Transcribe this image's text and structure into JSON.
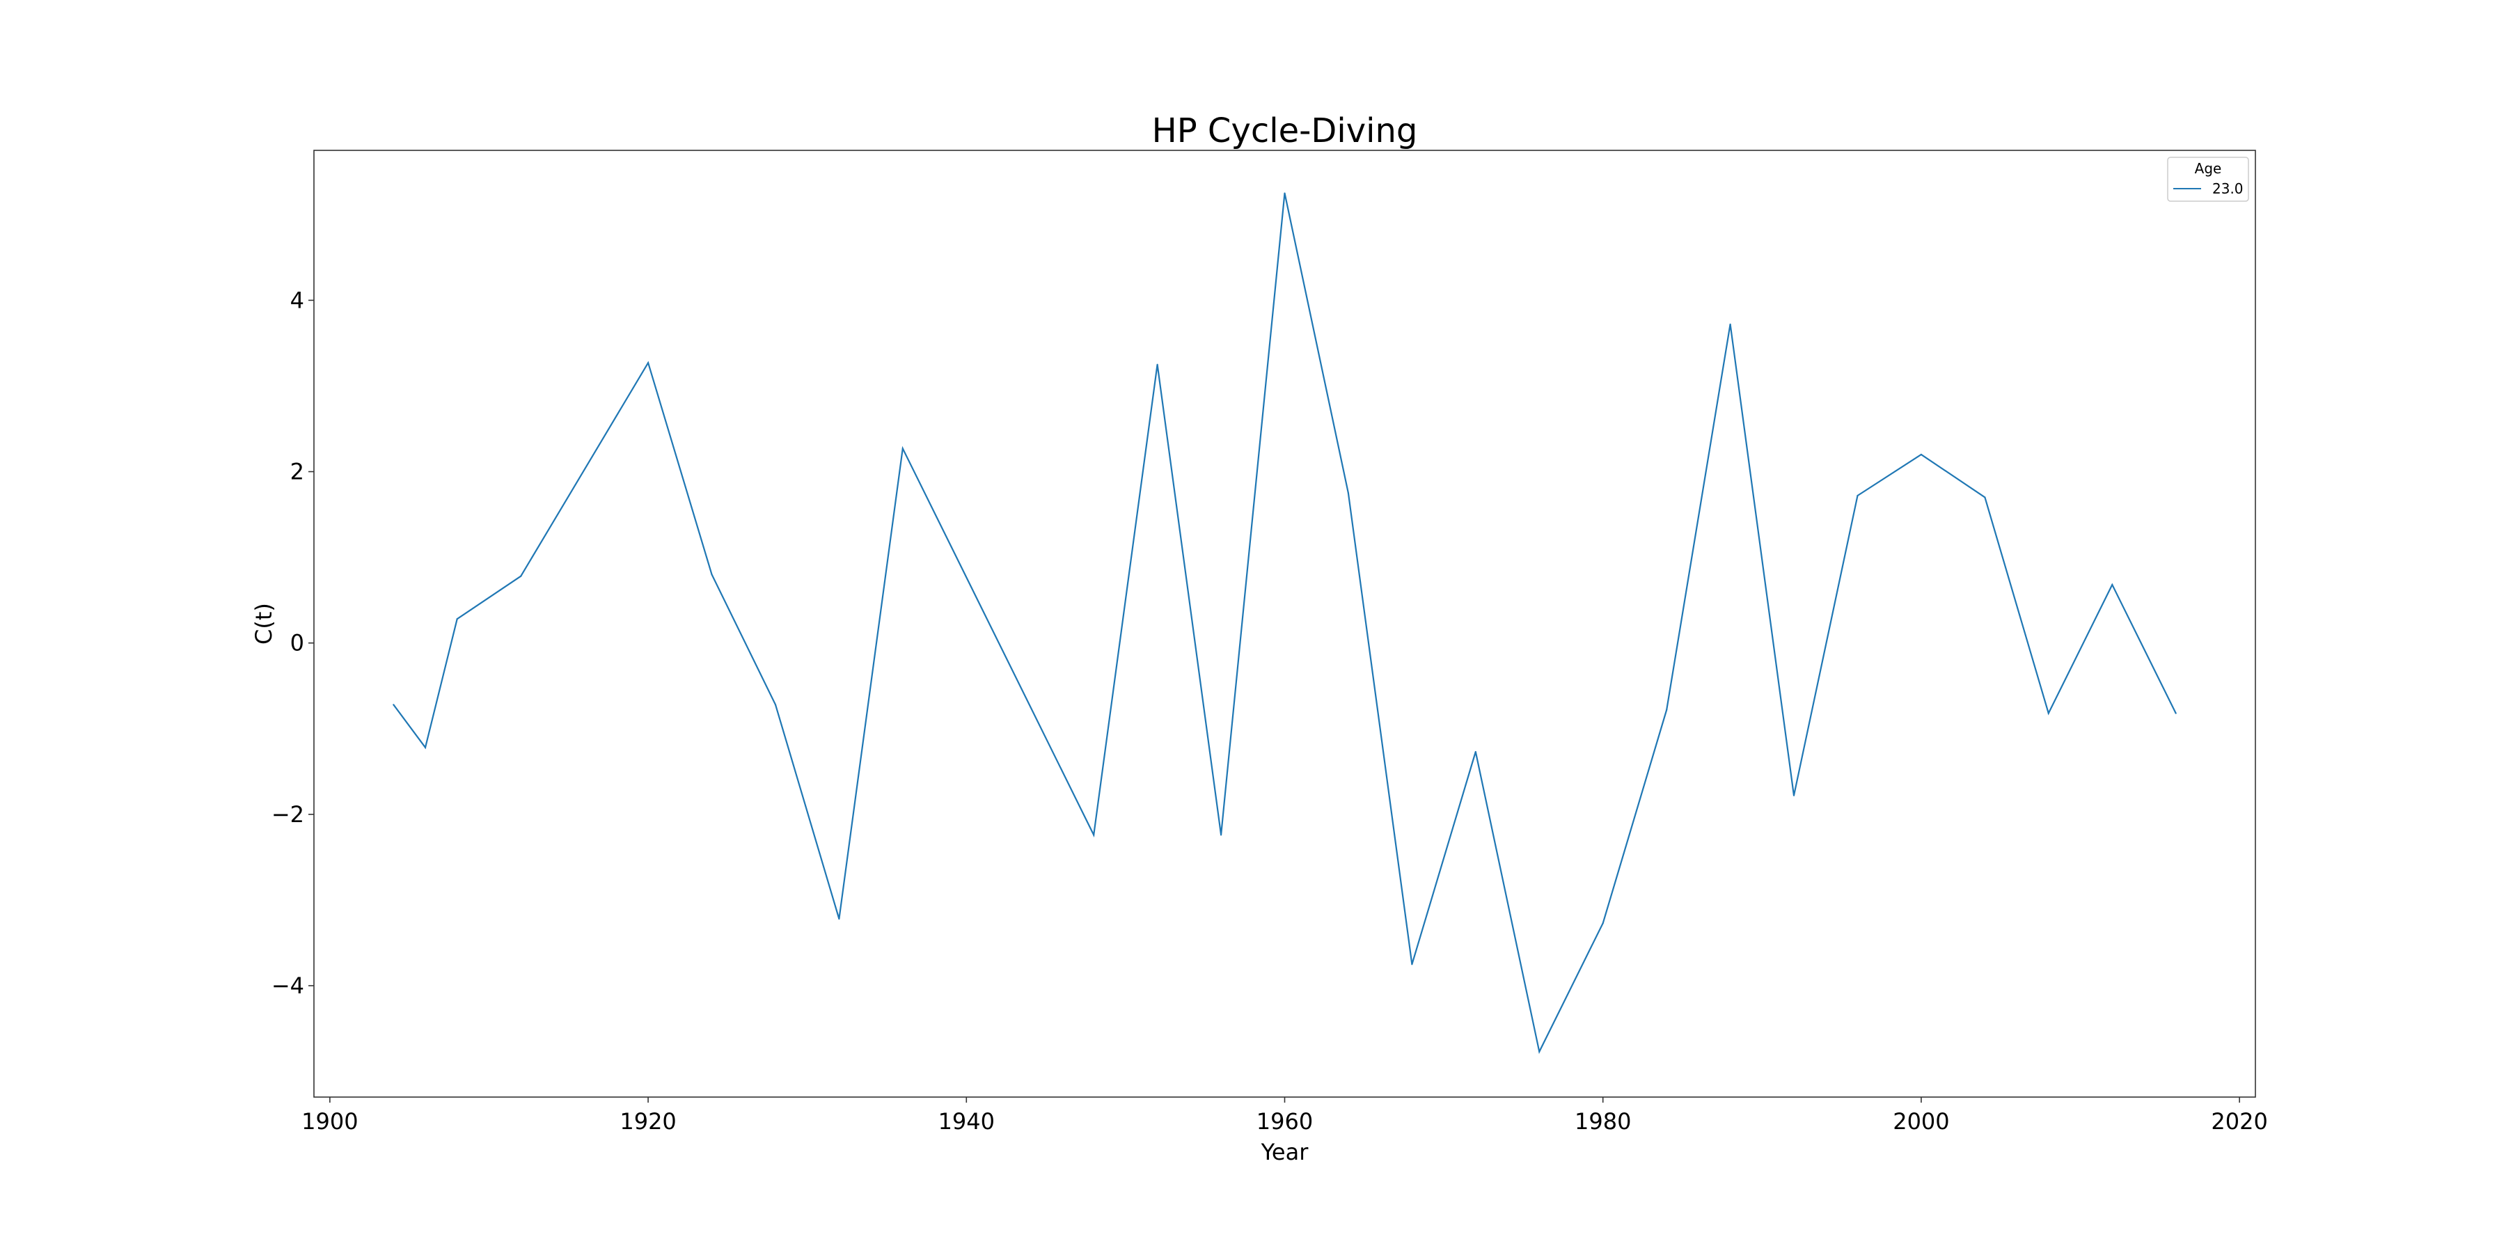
{
  "chart_data": {
    "type": "line",
    "title": "HP Cycle-Diving",
    "xlabel": "Year",
    "ylabel": "C(t)",
    "xlim": [
      1899,
      2021
    ],
    "ylim": [
      -5.3,
      5.75
    ],
    "xticks": [
      1900,
      1920,
      1940,
      1960,
      1980,
      2000,
      2020
    ],
    "yticks": [
      -4,
      -2,
      0,
      2,
      4
    ],
    "xtick_labels": [
      "1900",
      "1920",
      "1940",
      "1960",
      "1980",
      "2000",
      "2020"
    ],
    "ytick_labels": [
      "−4",
      "−2",
      "0",
      "2",
      "4"
    ],
    "grid": false,
    "legend": {
      "title": "Age",
      "placement": "top-right"
    },
    "series": [
      {
        "name": "23.0",
        "color": "#1f77b4",
        "x": [
          1904,
          1906,
          1908,
          1912,
          1920,
          1924,
          1928,
          1932,
          1936,
          1948,
          1952,
          1956,
          1960,
          1964,
          1968,
          1972,
          1976,
          1980,
          1984,
          1988,
          1992,
          1996,
          2000,
          2004,
          2008,
          2012,
          2016
        ],
        "y": [
          -0.72,
          -1.22,
          0.28,
          0.78,
          3.27,
          0.8,
          -0.72,
          -3.22,
          2.27,
          -2.24,
          3.25,
          -2.24,
          5.25,
          1.75,
          -3.75,
          -1.27,
          -4.77,
          -3.27,
          -0.78,
          3.72,
          -1.78,
          1.72,
          2.2,
          1.7,
          -0.82,
          0.68,
          -0.82
        ]
      }
    ]
  }
}
